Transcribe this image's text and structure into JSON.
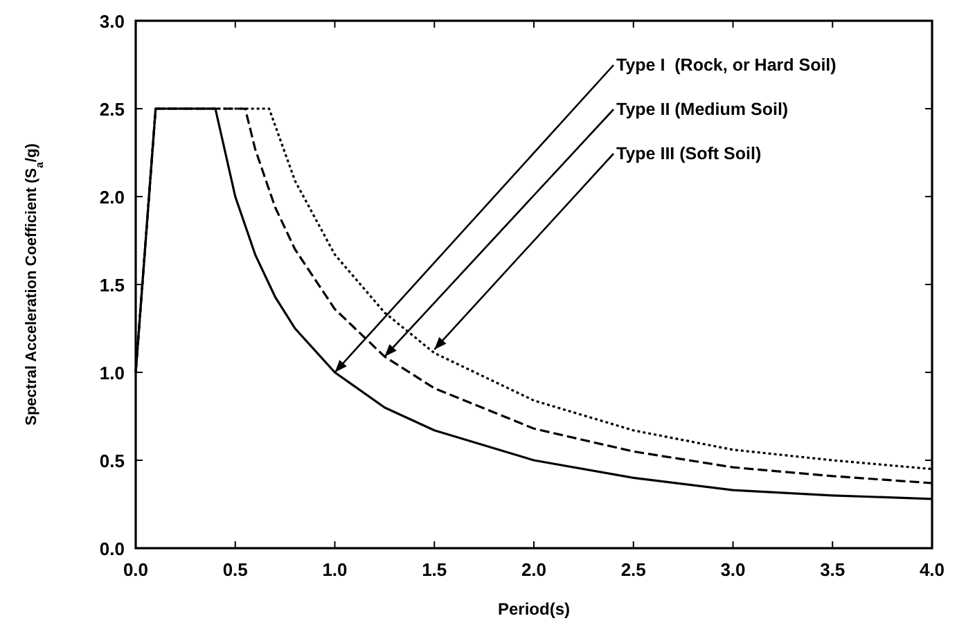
{
  "chart_data": {
    "type": "line",
    "xlabel": "Period(s)",
    "ylabel": "Spectral Acceleration Coefficient (S$_{a}$/g)",
    "xlim": [
      0,
      4
    ],
    "ylim": [
      0,
      3
    ],
    "xticks": [
      {
        "value": 0,
        "label": "0.0"
      },
      {
        "value": 0.5,
        "label": "0.5"
      },
      {
        "value": 1,
        "label": "1.0"
      },
      {
        "value": 1.5,
        "label": "1.5"
      },
      {
        "value": 2,
        "label": "2.0"
      },
      {
        "value": 2.5,
        "label": "2.5"
      },
      {
        "value": 3,
        "label": "3.0"
      },
      {
        "value": 3.5,
        "label": "3.5"
      },
      {
        "value": 4,
        "label": "4.0"
      }
    ],
    "yticks": [
      {
        "value": 0,
        "label": "0.0"
      },
      {
        "value": 0.5,
        "label": "0.5"
      },
      {
        "value": 1,
        "label": "1.0"
      },
      {
        "value": 1.5,
        "label": "1.5"
      },
      {
        "value": 2,
        "label": "2.0"
      },
      {
        "value": 2.5,
        "label": "2.5"
      },
      {
        "value": 3,
        "label": "3.0"
      }
    ],
    "grid": false,
    "marker": "none",
    "series": [
      {
        "color": "#000000",
        "line_style": "solid",
        "x": [
          0,
          0.1,
          0.4,
          0.5,
          0.6,
          0.7,
          0.8,
          1.0,
          1.25,
          1.5,
          2,
          2.5,
          3,
          3.5,
          4
        ],
        "values": [
          1.0,
          2.5,
          2.5,
          2.0,
          1.67,
          1.43,
          1.25,
          1.0,
          0.8,
          0.67,
          0.5,
          0.4,
          0.33,
          0.3,
          0.28
        ]
      },
      {
        "color": "#000000",
        "line_style": "dashed",
        "x": [
          0,
          0.1,
          0.55,
          0.6,
          0.7,
          0.8,
          1.0,
          1.25,
          1.5,
          2,
          2.5,
          3,
          3.5,
          4
        ],
        "values": [
          1.0,
          2.5,
          2.5,
          2.27,
          1.94,
          1.7,
          1.36,
          1.09,
          0.91,
          0.68,
          0.55,
          0.46,
          0.41,
          0.37
        ]
      },
      {
        "color": "#000000",
        "line_style": "dotted",
        "x": [
          0,
          0.1,
          0.67,
          0.8,
          1.0,
          1.25,
          1.5,
          2,
          2.5,
          3,
          3.5,
          4
        ],
        "values": [
          1.0,
          2.5,
          2.5,
          2.09,
          1.67,
          1.34,
          1.11,
          0.84,
          0.67,
          0.56,
          0.5,
          0.45
        ]
      }
    ],
    "annotations": [
      {
        "text": "Type I  (Rock, or Hard Soil)",
        "x": 1.0,
        "y": 1.0
      },
      {
        "text": "Type II (Medium Soil)",
        "x": 1.25,
        "y": 1.09
      },
      {
        "text": "Type III (Soft Soil)",
        "x": 1.5,
        "y": 1.13
      }
    ]
  }
}
